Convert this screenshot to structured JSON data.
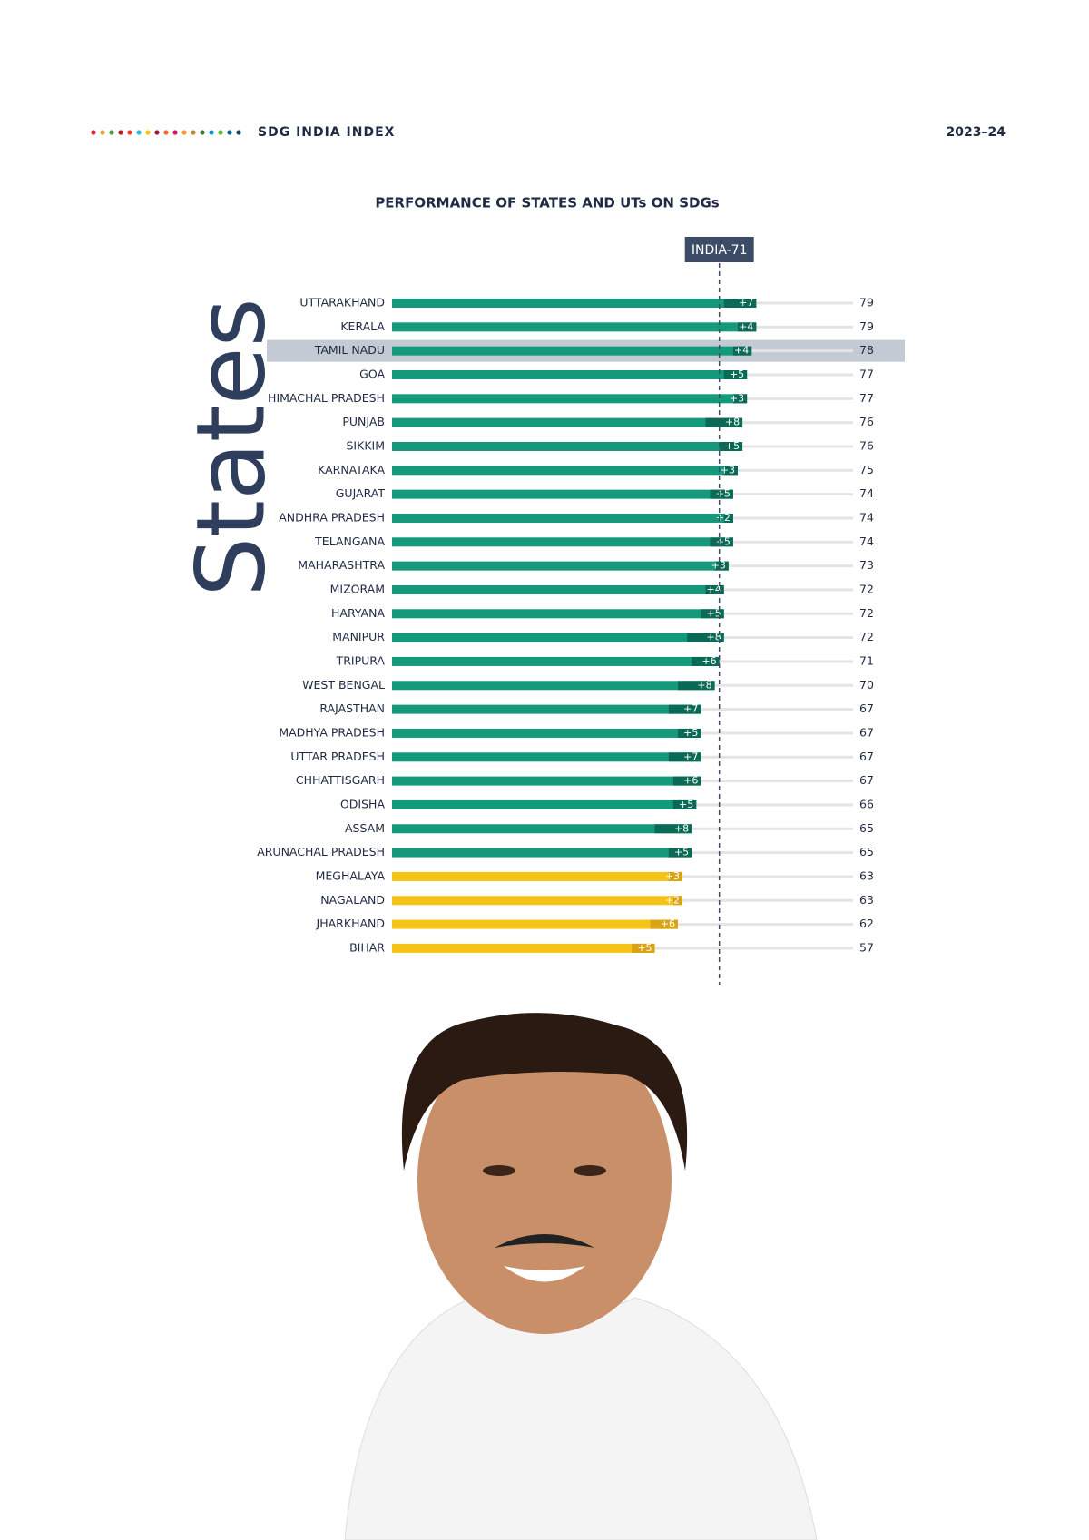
{
  "header": {
    "title": "SDG INDIA INDEX",
    "year": "2023–24"
  },
  "side_label": "States",
  "chart_data": {
    "type": "bar",
    "title": "PERFORMANCE OF STATES AND UTs ON SDGs",
    "categories": [
      "UTTARAKHAND",
      "KERALA",
      "TAMIL NADU",
      "GOA",
      "HIMACHAL PRADESH",
      "PUNJAB",
      "SIKKIM",
      "KARNATAKA",
      "GUJARAT",
      "ANDHRA PRADESH",
      "TELANGANA",
      "MAHARASHTRA",
      "MIZORAM",
      "HARYANA",
      "MANIPUR",
      "TRIPURA",
      "WEST BENGAL",
      "RAJASTHAN",
      "MADHYA PRADESH",
      "UTTAR PRADESH",
      "CHHATTISGARH",
      "ODISHA",
      "ASSAM",
      "ARUNACHAL PRADESH",
      "MEGHALAYA",
      "NAGALAND",
      "JHARKHAND",
      "BIHAR"
    ],
    "values": [
      79,
      79,
      78,
      77,
      77,
      76,
      76,
      75,
      74,
      74,
      74,
      73,
      72,
      72,
      72,
      71,
      70,
      67,
      67,
      67,
      67,
      66,
      65,
      65,
      63,
      63,
      62,
      57
    ],
    "changes": [
      7,
      4,
      4,
      5,
      3,
      8,
      5,
      3,
      5,
      2,
      5,
      3,
      4,
      5,
      8,
      6,
      8,
      7,
      5,
      7,
      6,
      5,
      8,
      5,
      3,
      2,
      6,
      5
    ],
    "change_labels": [
      "+7",
      "+4",
      "+4",
      "+5",
      "+3",
      "+8",
      "+5",
      "+3",
      "+5",
      "+2",
      "+5",
      "+3",
      "+4",
      "+5",
      "+8",
      "+6",
      "+8",
      "+7",
      "+5",
      "+7",
      "+6",
      "+5",
      "+8",
      "+5",
      "+3",
      "+2",
      "+6",
      "+5"
    ],
    "bar_colors": [
      "#14997a",
      "#14997a",
      "#14997a",
      "#14997a",
      "#14997a",
      "#14997a",
      "#14997a",
      "#14997a",
      "#14997a",
      "#14997a",
      "#14997a",
      "#14997a",
      "#14997a",
      "#14997a",
      "#14997a",
      "#14997a",
      "#14997a",
      "#14997a",
      "#14997a",
      "#14997a",
      "#14997a",
      "#14997a",
      "#14997a",
      "#14997a",
      "#f5c316",
      "#f5c316",
      "#f5c316",
      "#f5c316"
    ],
    "change_colors": [
      "#0b6a55",
      "#0b6a55",
      "#0b6a55",
      "#0b6a55",
      "#0b6a55",
      "#0b6a55",
      "#0b6a55",
      "#0b6a55",
      "#0b6a55",
      "#0b6a55",
      "#0b6a55",
      "#0b6a55",
      "#0b6a55",
      "#0b6a55",
      "#0b6a55",
      "#0b6a55",
      "#0b6a55",
      "#0b6a55",
      "#0b6a55",
      "#0b6a55",
      "#0b6a55",
      "#0b6a55",
      "#0b6a55",
      "#0b6a55",
      "#d9a414",
      "#d9a414",
      "#d9a414",
      "#d9a414"
    ],
    "xlim": [
      0,
      100
    ],
    "highlight_index": 2,
    "reference": {
      "value": 71,
      "label": "INDIA-71"
    }
  }
}
